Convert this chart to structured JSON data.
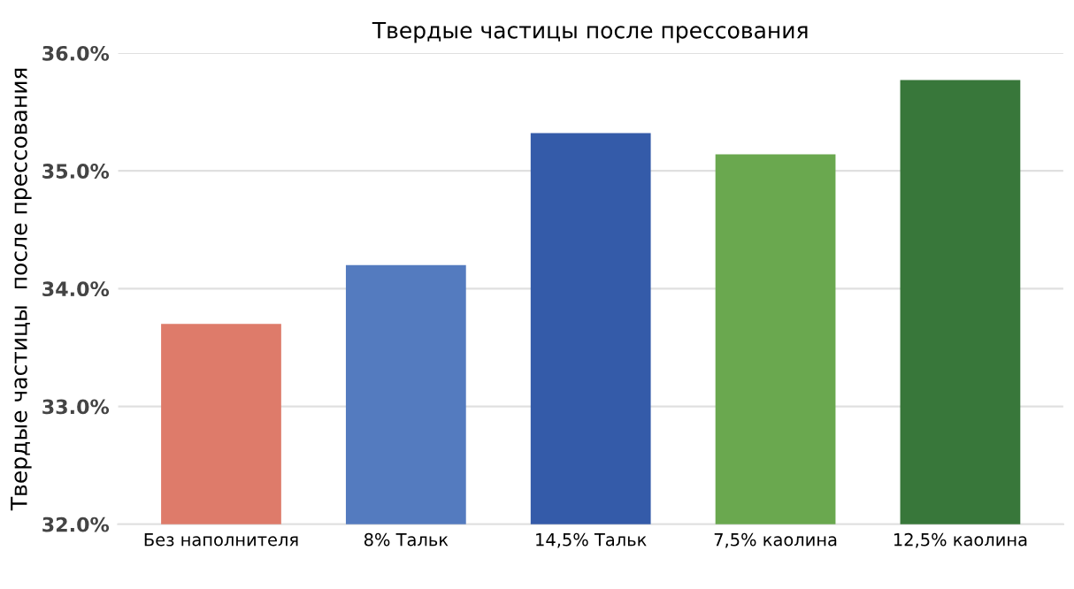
{
  "chart_data": {
    "type": "bar",
    "title": "Твердые частицы после прессования",
    "ylabel": "Твердые частицы  после прессования",
    "categories": [
      "Без наполнителя",
      "8% Тальк",
      "14,5% Тальк",
      "7,5% каолина",
      "12,5% каолина"
    ],
    "values": [
      33.7,
      34.2,
      35.32,
      35.14,
      35.77
    ],
    "colors": [
      "#de7b6a",
      "#547bbf",
      "#345ba9",
      "#6aa84f",
      "#38773a"
    ],
    "ylim": [
      32,
      36
    ],
    "yticks": [
      {
        "value": 32,
        "label": "32.0%"
      },
      {
        "value": 33,
        "label": "33.0%"
      },
      {
        "value": 34,
        "label": "34.0%"
      },
      {
        "value": 35,
        "label": "35.0%"
      },
      {
        "value": 36,
        "label": "36.0%"
      }
    ],
    "grid": "y"
  }
}
